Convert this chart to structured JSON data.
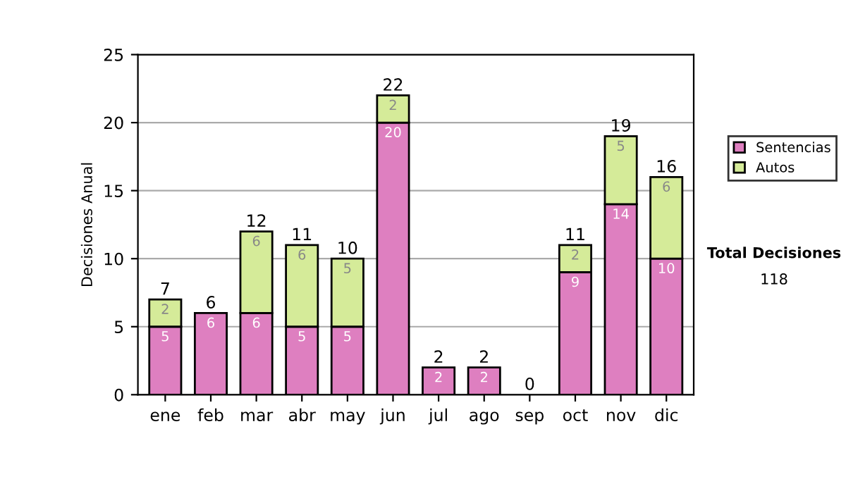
{
  "chart_data": {
    "type": "bar",
    "stacked": true,
    "ylabel": "Decisiones Anual",
    "categories": [
      "ene",
      "feb",
      "mar",
      "abr",
      "may",
      "jun",
      "jul",
      "ago",
      "sep",
      "oct",
      "nov",
      "dic"
    ],
    "series": [
      {
        "name": "Sentencias",
        "color": "#de7fc0",
        "values": [
          5,
          6,
          6,
          5,
          5,
          20,
          2,
          2,
          0,
          9,
          14,
          10
        ],
        "value_labels": [
          "5",
          "6",
          "6",
          "5",
          "5",
          "20",
          "2",
          "2",
          null,
          "9",
          "14",
          "10"
        ]
      },
      {
        "name": "Autos",
        "color": "#d5eb99",
        "values": [
          2,
          0,
          6,
          6,
          5,
          2,
          0,
          0,
          0,
          2,
          5,
          6
        ],
        "value_labels": [
          "2",
          null,
          "6",
          "6",
          "5",
          "2",
          null,
          null,
          null,
          "2",
          "5",
          "6"
        ]
      }
    ],
    "totals": [
      "7",
      "6",
      "12",
      "11",
      "10",
      "22",
      "2",
      "2",
      "0",
      "11",
      "19",
      "16"
    ],
    "ylim": [
      0,
      25
    ],
    "yticks": [
      0,
      5,
      10,
      15,
      20,
      25
    ],
    "grid": "y",
    "legend": "right",
    "annotations": [
      "Total Decisiones",
      "118"
    ]
  }
}
